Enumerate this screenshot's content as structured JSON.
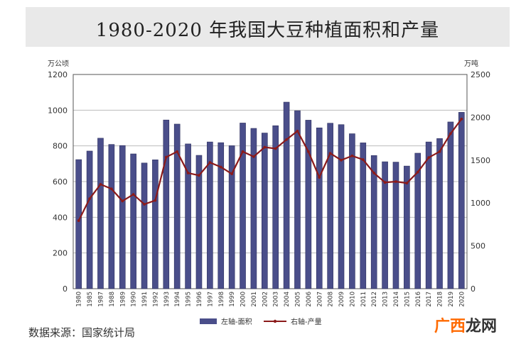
{
  "title": "1980-2020 年我国大豆种植面积和产量",
  "source": "数据来源：国家统计局",
  "watermark": {
    "part1": "广西",
    "part2": "龙网"
  },
  "chart_data": {
    "type": "bar+line",
    "title": "1980-2020 年我国大豆种植面积和产量",
    "left_axis": {
      "unit": "万公顷",
      "ylim": [
        0,
        1200
      ],
      "ticks": [
        0,
        200,
        400,
        600,
        800,
        1000,
        1200
      ]
    },
    "right_axis": {
      "unit": "万吨",
      "ylim": [
        0,
        2500
      ],
      "ticks": [
        0,
        500,
        1000,
        1500,
        2000,
        2500
      ]
    },
    "categories": [
      "1980",
      "1985",
      "1987",
      "1988",
      "1989",
      "1990",
      "1991",
      "1992",
      "1993",
      "1994",
      "1995",
      "1996",
      "1997",
      "1998",
      "1999",
      "2000",
      "2001",
      "2002",
      "2003",
      "2004",
      "2005",
      "2006",
      "2007",
      "2008",
      "2009",
      "2010",
      "2011",
      "2012",
      "2013",
      "2014",
      "2015",
      "2016",
      "2017",
      "2018",
      "2019",
      "2020"
    ],
    "series": [
      {
        "name": "左轴-面积",
        "type": "bar",
        "axis": "left",
        "color": "#4a4e8a",
        "values": [
          723,
          771,
          843,
          808,
          802,
          755,
          704,
          722,
          945,
          922,
          811,
          747,
          822,
          818,
          801,
          928,
          898,
          872,
          913,
          1045,
          997,
          944,
          901,
          927,
          919,
          868,
          817,
          746,
          711,
          709,
          687,
          759,
          822,
          841,
          934,
          988
        ]
      },
      {
        "name": "右轴-产量",
        "type": "line",
        "axis": "right",
        "color": "#8b1a1a",
        "values": [
          794,
          1050,
          1218,
          1165,
          1023,
          1100,
          985,
          1030,
          1535,
          1600,
          1350,
          1322,
          1473,
          1420,
          1340,
          1600,
          1541,
          1651,
          1635,
          1740,
          1840,
          1600,
          1300,
          1580,
          1500,
          1550,
          1506,
          1350,
          1240,
          1250,
          1232,
          1360,
          1530,
          1600,
          1810,
          1980
        ]
      }
    ],
    "legend": [
      {
        "label": "左轴-面积",
        "style": "bar"
      },
      {
        "label": "右轴-产量",
        "style": "line"
      }
    ],
    "legend_position": "bottom-center",
    "grid": true
  },
  "colors": {
    "bar": "#4a4e8a",
    "line": "#8b1a1a",
    "title_band": "#e9e9e9"
  }
}
